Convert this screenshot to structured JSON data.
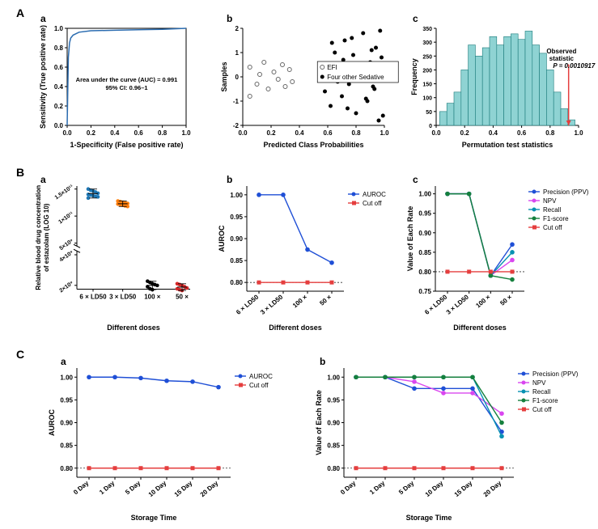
{
  "labels": {
    "A": "A",
    "B": "B",
    "C": "C",
    "a": "a",
    "b": "b",
    "c": "c"
  },
  "colors": {
    "bg": "#ffffff",
    "axis": "#000000",
    "roc_line": "#2b6cb0",
    "hist_fill": "#8fd3d3",
    "hist_edge": "#1a7a7a",
    "obs_line": "#e53e3e",
    "dot_blue": "#1f77b4",
    "dot_orange": "#ff7f0e",
    "dot_black": "#000000",
    "dot_red": "#d62728",
    "line_auroc": "#1f4fd6",
    "line_cutoff": "#e53e3e",
    "line_precision": "#1f4fd6",
    "line_npv": "#d946ef",
    "line_recall": "#0891b2",
    "line_f1": "#15803d",
    "scatter_open": "#666666",
    "scatter_filled": "#000000",
    "dotted": "#333333"
  },
  "Aa": {
    "type": "line",
    "xlabel": "1-Specificity (False positive rate)",
    "ylabel": "Sensitivity (True positive rate)",
    "xlim": [
      0,
      1
    ],
    "ylim": [
      0,
      1
    ],
    "xticks": [
      0.0,
      0.2,
      0.4,
      0.6,
      0.8,
      1.0
    ],
    "yticks": [
      0.0,
      0.2,
      0.4,
      0.6,
      0.8,
      1.0
    ],
    "roc_x": [
      0,
      0.01,
      0.02,
      0.03,
      0.05,
      0.1,
      0.2,
      0.4,
      0.6,
      0.8,
      1.0
    ],
    "roc_y": [
      0,
      0.7,
      0.85,
      0.9,
      0.93,
      0.96,
      0.975,
      0.98,
      0.985,
      0.99,
      1.0
    ],
    "annotation1": "Area under the curve (AUC) = 0.991",
    "annotation2": "95% CI: 0.96–1"
  },
  "Ab": {
    "type": "scatter",
    "xlabel": "Predicted Class Probabilities",
    "ylabel": "Samples",
    "xlim": [
      0,
      1
    ],
    "ylim": [
      -2,
      2
    ],
    "xticks": [
      0.0,
      0.2,
      0.4,
      0.6,
      0.8,
      1.0
    ],
    "yticks": [
      -2,
      -1,
      0,
      1,
      2
    ],
    "legend1": "EFI",
    "legend2": "Four other Sedative",
    "open_points": [
      [
        0.05,
        0.4
      ],
      [
        0.1,
        -0.3
      ],
      [
        0.12,
        0.1
      ],
      [
        0.15,
        0.6
      ],
      [
        0.18,
        -0.5
      ],
      [
        0.22,
        0.2
      ],
      [
        0.25,
        -0.1
      ],
      [
        0.28,
        0.5
      ],
      [
        0.3,
        -0.4
      ],
      [
        0.33,
        0.3
      ],
      [
        0.35,
        -0.2
      ],
      [
        0.05,
        -0.8
      ]
    ],
    "filled_points": [
      [
        0.6,
        0.5
      ],
      [
        0.62,
        -1.2
      ],
      [
        0.65,
        1.0
      ],
      [
        0.68,
        0.2
      ],
      [
        0.7,
        -0.8
      ],
      [
        0.72,
        1.5
      ],
      [
        0.75,
        -0.3
      ],
      [
        0.78,
        0.9
      ],
      [
        0.8,
        -1.5
      ],
      [
        0.82,
        0.4
      ],
      [
        0.85,
        1.8
      ],
      [
        0.88,
        -1.0
      ],
      [
        0.9,
        0.6
      ],
      [
        0.92,
        -0.4
      ],
      [
        0.94,
        1.2
      ],
      [
        0.96,
        -1.8
      ],
      [
        0.98,
        0.8
      ],
      [
        0.55,
        0.3
      ],
      [
        0.58,
        -0.6
      ],
      [
        0.63,
        1.4
      ],
      [
        0.67,
        -0.2
      ],
      [
        0.71,
        0.7
      ],
      [
        0.74,
        -1.3
      ],
      [
        0.77,
        1.6
      ],
      [
        0.81,
        -0.1
      ],
      [
        0.84,
        0.3
      ],
      [
        0.87,
        -0.9
      ],
      [
        0.91,
        1.1
      ],
      [
        0.93,
        -0.5
      ],
      [
        0.97,
        1.9
      ],
      [
        0.99,
        -1.6
      ]
    ]
  },
  "Ac": {
    "type": "histogram",
    "xlabel": "Permutation test statistics",
    "ylabel": "Frequency",
    "xlim": [
      0,
      1
    ],
    "ylim": [
      0,
      350
    ],
    "xticks": [
      0.0,
      0.2,
      0.4,
      0.6,
      0.8,
      1.0
    ],
    "yticks": [
      0,
      50,
      100,
      150,
      200,
      250,
      300,
      350
    ],
    "bins": [
      0.05,
      0.1,
      0.15,
      0.2,
      0.25,
      0.3,
      0.35,
      0.4,
      0.45,
      0.5,
      0.55,
      0.6,
      0.65,
      0.7,
      0.75,
      0.8,
      0.85,
      0.9,
      0.95
    ],
    "counts": [
      50,
      80,
      120,
      200,
      290,
      250,
      280,
      320,
      290,
      320,
      330,
      310,
      340,
      290,
      260,
      200,
      120,
      60,
      20
    ],
    "observed_x": 0.93,
    "annotation1": "Observed",
    "annotation2": "statistic",
    "annotation3": "P = 0.0010917"
  },
  "Ba": {
    "type": "scatter",
    "xlabel": "Different doses",
    "ylabel": "Relative blood drug concentration of estazolam (LOG 10)",
    "categories": [
      "6 × LD50",
      "3 × LD50",
      "100 ×",
      "50 ×"
    ],
    "yticks_upper": [
      "1.5×10¹¹",
      "1×10¹¹",
      "5×10⁹"
    ],
    "yticks_lower": [
      "4×10⁹",
      "2×10⁹"
    ],
    "groups": [
      {
        "x": 0,
        "color": "#1f77b4",
        "points": [
          0.95,
          0.93,
          0.92,
          0.9,
          0.88,
          0.86,
          0.85,
          0.84,
          0.83,
          0.82,
          0.8
        ]
      },
      {
        "x": 1,
        "color": "#ff7f0e",
        "points": [
          0.75,
          0.74,
          0.73,
          0.72,
          0.71,
          0.7,
          0.69,
          0.68,
          0.67,
          0.66
        ]
      },
      {
        "x": 2,
        "color": "#000000",
        "points": [
          0.28,
          0.25,
          0.22,
          0.2,
          0.18,
          0.15,
          0.1,
          0.08
        ]
      },
      {
        "x": 3,
        "color": "#d62728",
        "points": [
          0.22,
          0.2,
          0.18,
          0.15,
          0.12,
          0.1,
          0.08,
          0.06
        ]
      }
    ]
  },
  "Bb": {
    "type": "line",
    "xlabel": "Different doses",
    "ylabel": "AUROC",
    "categories": [
      "6 × LD50",
      "3 × LD50",
      "100 ×",
      "50 ×"
    ],
    "ylim": [
      0.78,
      1.02
    ],
    "yticks": [
      0.8,
      0.85,
      0.9,
      0.95,
      1.0
    ],
    "series": [
      {
        "name": "AUROC",
        "color": "#1f4fd6",
        "marker": "diamond",
        "y": [
          1.0,
          1.0,
          0.875,
          0.845
        ]
      },
      {
        "name": "Cut off",
        "color": "#e53e3e",
        "marker": "square",
        "y": [
          0.8,
          0.8,
          0.8,
          0.8
        ]
      }
    ],
    "legend": [
      "AUROC",
      "Cut off"
    ]
  },
  "Bc": {
    "type": "line",
    "xlabel": "Different doses",
    "categories": [
      "6 × LD50",
      "3 × LD50",
      "100 ×",
      "50 ×"
    ],
    "ylabel": "Value of Each Rate",
    "ylim": [
      0.75,
      1.02
    ],
    "yticks": [
      0.75,
      0.8,
      0.85,
      0.9,
      0.95,
      1.0
    ],
    "series": [
      {
        "name": "Precision (PPV)",
        "color": "#1f4fd6",
        "y": [
          1.0,
          1.0,
          0.79,
          0.87
        ]
      },
      {
        "name": "NPV",
        "color": "#d946ef",
        "y": [
          1.0,
          1.0,
          0.79,
          0.83
        ]
      },
      {
        "name": "Recall",
        "color": "#0891b2",
        "y": [
          1.0,
          1.0,
          0.79,
          0.85
        ]
      },
      {
        "name": "F1-score",
        "color": "#15803d",
        "y": [
          1.0,
          1.0,
          0.79,
          0.78
        ]
      },
      {
        "name": "Cut off",
        "color": "#e53e3e",
        "y": [
          0.8,
          0.8,
          0.8,
          0.8
        ]
      }
    ],
    "legend": [
      "Precision (PPV)",
      "NPV",
      "Recall",
      "F1-score",
      "Cut off"
    ]
  },
  "Ca": {
    "type": "line",
    "xlabel": "Storage Time",
    "ylabel": "AUROC",
    "categories": [
      "0 Day",
      "1 Day",
      "5 Day",
      "10 Day",
      "15 Day",
      "20 Day"
    ],
    "ylim": [
      0.78,
      1.02
    ],
    "yticks": [
      0.8,
      0.85,
      0.9,
      0.95,
      1.0
    ],
    "series": [
      {
        "name": "AUROC",
        "color": "#1f4fd6",
        "marker": "diamond",
        "y": [
          1.0,
          1.0,
          0.998,
          0.992,
          0.99,
          0.978
        ]
      },
      {
        "name": "Cut off",
        "color": "#e53e3e",
        "marker": "square",
        "y": [
          0.8,
          0.8,
          0.8,
          0.8,
          0.8,
          0.8
        ]
      }
    ],
    "legend": [
      "AUROC",
      "Cut off"
    ]
  },
  "Cb": {
    "type": "line",
    "xlabel": "Storage Time",
    "ylabel": "Value of Each Rate",
    "categories": [
      "0 Day",
      "1 Day",
      "5 Day",
      "10 Day",
      "15 Day",
      "20 Day"
    ],
    "ylim": [
      0.78,
      1.02
    ],
    "yticks": [
      0.8,
      0.85,
      0.9,
      0.95,
      1.0
    ],
    "series": [
      {
        "name": "Precision (PPV)",
        "color": "#1f4fd6",
        "y": [
          1.0,
          1.0,
          0.975,
          0.975,
          0.975,
          0.88
        ]
      },
      {
        "name": "NPV",
        "color": "#d946ef",
        "y": [
          1.0,
          1.0,
          0.99,
          0.965,
          0.965,
          0.92
        ]
      },
      {
        "name": "Recall",
        "color": "#0891b2",
        "y": [
          1.0,
          1.0,
          1.0,
          1.0,
          1.0,
          0.87
        ]
      },
      {
        "name": "F1-score",
        "color": "#15803d",
        "y": [
          1.0,
          1.0,
          1.0,
          1.0,
          1.0,
          0.9
        ]
      },
      {
        "name": "Cut off",
        "color": "#e53e3e",
        "y": [
          0.8,
          0.8,
          0.8,
          0.8,
          0.8,
          0.8
        ]
      }
    ],
    "legend": [
      "Precision (PPV)",
      "NPV",
      "Recall",
      "F1-score",
      "Cut off"
    ]
  }
}
